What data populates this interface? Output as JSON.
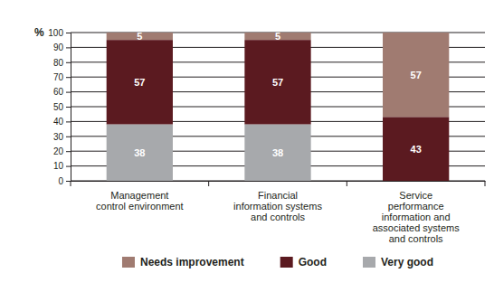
{
  "chart_data": {
    "type": "bar",
    "stacked": true,
    "y_label": "%",
    "categories": [
      "Management control environment",
      "Financial information systems and controls",
      "Service performance information and associated systems and controls"
    ],
    "series": [
      {
        "name": "Needs improvement",
        "color": "#a07b71",
        "values": [
          5,
          5,
          57
        ]
      },
      {
        "name": "Good",
        "color": "#5b1a20",
        "values": [
          57,
          57,
          43
        ]
      },
      {
        "name": "Very good",
        "color": "#a7a9ac",
        "values": [
          38,
          38,
          null
        ]
      }
    ],
    "ylim": [
      0,
      100
    ],
    "yticks": [
      0,
      10,
      20,
      30,
      40,
      50,
      60,
      70,
      80,
      90,
      100
    ],
    "grid": true,
    "data_labels": true,
    "legend": "bottom"
  }
}
